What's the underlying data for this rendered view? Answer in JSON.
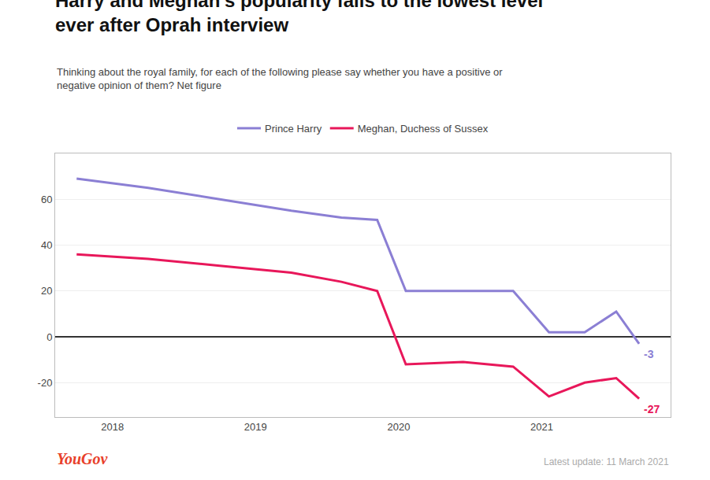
{
  "chart_data": {
    "type": "line",
    "title": "Harry and Meghan's popularity falls to the lowest level\never after Oprah interview",
    "subtitle": "Thinking about the royal family, for each of the following please say whether you have a positive or\nnegative opinion of them? Net figure",
    "x": [
      2017.75,
      2018.25,
      2018.75,
      2019.25,
      2019.6,
      2019.85,
      2020.05,
      2020.45,
      2020.8,
      2021.05,
      2021.3,
      2021.52,
      2021.68
    ],
    "series": [
      {
        "name": "Prince Harry",
        "color": "#8B7FD4",
        "values": [
          69,
          65,
          60,
          55,
          52,
          51,
          20,
          20,
          20,
          2,
          2,
          11,
          -3
        ]
      },
      {
        "name": "Meghan, Duchess of Sussex",
        "color": "#E8175A",
        "values": [
          36,
          34,
          31,
          28,
          24,
          20,
          -12,
          -11,
          -13,
          -26,
          -20,
          -18,
          -27
        ]
      }
    ],
    "xlim": [
      2017.6,
      2021.9
    ],
    "xticks": [
      2018,
      2019,
      2020,
      2021
    ],
    "ylim": [
      -35,
      80
    ],
    "yticks": [
      -20,
      0,
      20,
      40,
      60
    ],
    "grid": "y",
    "legend": "top",
    "annotations": [
      {
        "text": "-3",
        "x": 2021.68,
        "y": -3,
        "color": "#8B7FD4"
      },
      {
        "text": "-27",
        "x": 2021.68,
        "y": -27,
        "color": "#E8175A"
      },
      {
        "text": "YouGov",
        "color": "#E8402A"
      },
      {
        "text": "Latest update: 11 March 2021",
        "color": "#aaaaaa"
      }
    ]
  }
}
